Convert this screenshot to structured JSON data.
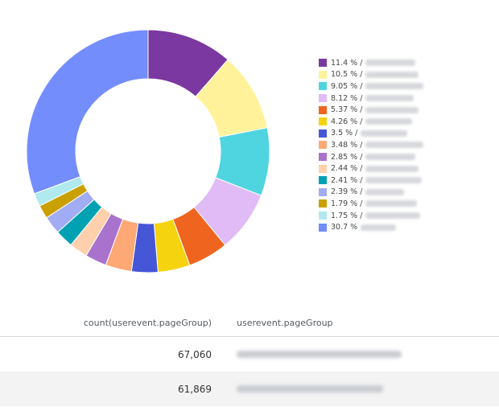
{
  "chart_data": {
    "type": "pie",
    "variant": "donut",
    "slices": [
      {
        "label": "11.4 %",
        "value": 11.4,
        "color": "#7b38a1"
      },
      {
        "label": "10.5 %",
        "value": 10.5,
        "color": "#fff29a"
      },
      {
        "label": "9.05 %",
        "value": 9.05,
        "color": "#4fd5e0"
      },
      {
        "label": "8.12 %",
        "value": 8.12,
        "color": "#e0bbf5"
      },
      {
        "label": "5.37 %",
        "value": 5.37,
        "color": "#ef651f"
      },
      {
        "label": "4.26 %",
        "value": 4.26,
        "color": "#f5d30f"
      },
      {
        "label": "3.5 %",
        "value": 3.5,
        "color": "#4556d7"
      },
      {
        "label": "3.48 %",
        "value": 3.48,
        "color": "#fea876"
      },
      {
        "label": "2.85 %",
        "value": 2.85,
        "color": "#a972cc"
      },
      {
        "label": "2.44 %",
        "value": 2.44,
        "color": "#ffd0ab"
      },
      {
        "label": "2.41 %",
        "value": 2.41,
        "color": "#00a1b2"
      },
      {
        "label": "2.39 %",
        "value": 2.39,
        "color": "#a1acf5"
      },
      {
        "label": "1.79 %",
        "value": 1.79,
        "color": "#c9a000"
      },
      {
        "label": "1.75 %",
        "value": 1.75,
        "color": "#b0eaf0"
      },
      {
        "label": "30.7 %",
        "value": 30.7,
        "color": "#738dfc"
      }
    ],
    "legend_prefixes": [
      "/",
      "/",
      "/",
      "/",
      "/",
      "/",
      "/",
      "/",
      "/",
      "/",
      "/",
      "/",
      "/",
      "/",
      ""
    ],
    "legend_position": "right"
  },
  "table": {
    "headers": {
      "count": "count(userevent.pageGroup)",
      "group": "userevent.pageGroup"
    },
    "rows": [
      {
        "count": "67,060"
      },
      {
        "count": "61,869"
      }
    ]
  }
}
